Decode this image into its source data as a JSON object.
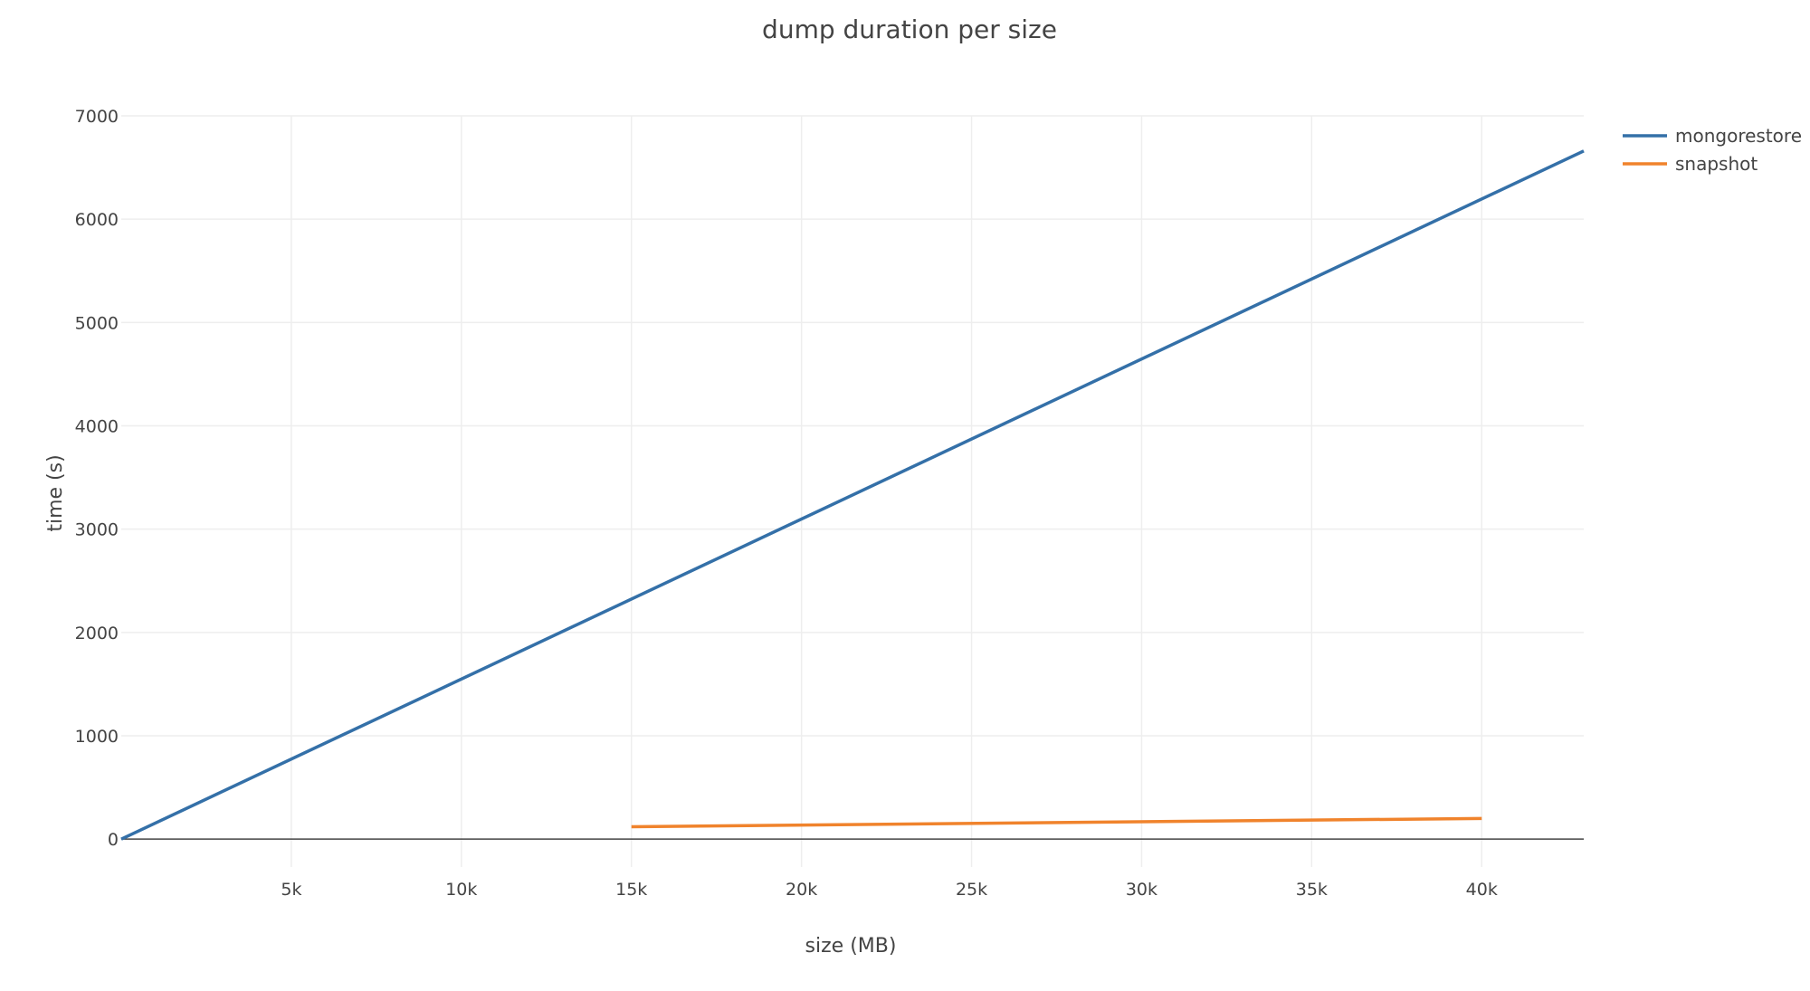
{
  "chart_data": {
    "type": "line",
    "title": "dump duration per size",
    "xlabel": "size (MB)",
    "ylabel": "time (s)",
    "xlim": [
      0,
      43000
    ],
    "ylim": [
      -270,
      7000
    ],
    "x_ticks": [
      5000,
      10000,
      15000,
      20000,
      25000,
      30000,
      35000,
      40000
    ],
    "x_tick_labels": [
      "5k",
      "10k",
      "15k",
      "20k",
      "25k",
      "30k",
      "35k",
      "40k"
    ],
    "y_ticks": [
      0,
      1000,
      2000,
      3000,
      4000,
      5000,
      6000,
      7000
    ],
    "y_tick_labels": [
      "0",
      "1000",
      "2000",
      "3000",
      "4000",
      "5000",
      "6000",
      "7000"
    ],
    "grid": true,
    "legend_position": "top-right",
    "series": [
      {
        "name": "mongorestore",
        "color": "#3470a8",
        "x": [
          0,
          43000
        ],
        "y": [
          0,
          6660
        ]
      },
      {
        "name": "snapshot",
        "color": "#f0832c",
        "x": [
          15000,
          40000
        ],
        "y": [
          120,
          200
        ]
      }
    ]
  }
}
